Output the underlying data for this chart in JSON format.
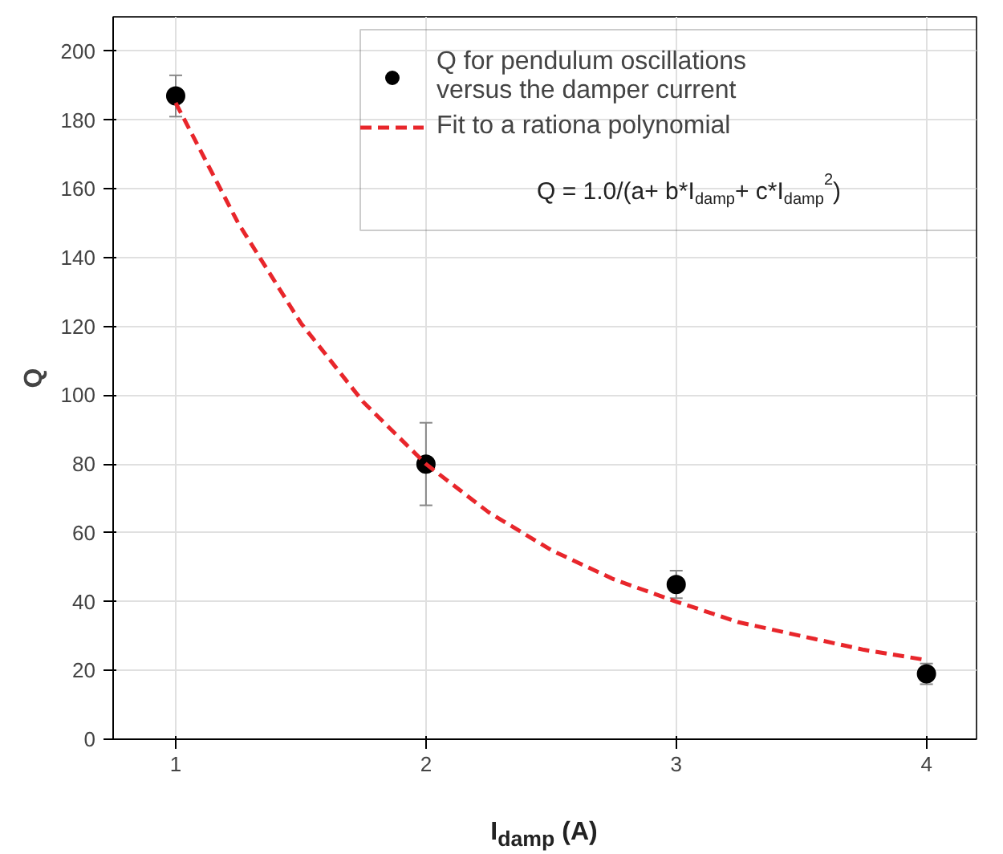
{
  "chart_data": {
    "type": "scatter",
    "xlabel": "I$_{damp}$ (A)",
    "ylabel": "Q",
    "xlim": [
      0.75,
      4.2
    ],
    "ylim": [
      0,
      210
    ],
    "xticks": [
      1,
      2,
      3,
      4
    ],
    "yticks": [
      0,
      20,
      40,
      60,
      80,
      100,
      120,
      140,
      160,
      180,
      200
    ],
    "grid": true,
    "legend": "top right",
    "marker": "circle",
    "annotations": [
      "Q = 1.0/(a+ b*I$_{damp}$+ c*I$_{damp}$$^{2}$)"
    ],
    "series": [
      {
        "name": "Q for pendulum oscillations\nversus the damper current",
        "color": "#000000",
        "x": [
          1,
          2,
          3,
          4
        ],
        "values": [
          187,
          80,
          45,
          19
        ],
        "errors": [
          6,
          12,
          4,
          3
        ]
      },
      {
        "name": "Fit to a rationa polynomial",
        "type": "line",
        "line_style": "dashed",
        "marker": "none",
        "color": "#e8262b",
        "x": [
          1,
          1.25,
          1.5,
          1.75,
          2,
          2.25,
          2.5,
          2.75,
          3,
          3.25,
          3.5,
          3.75,
          4
        ],
        "values": [
          185,
          150,
          121,
          98,
          80,
          66,
          55,
          46.5,
          40,
          34,
          30,
          26,
          23
        ]
      }
    ]
  }
}
